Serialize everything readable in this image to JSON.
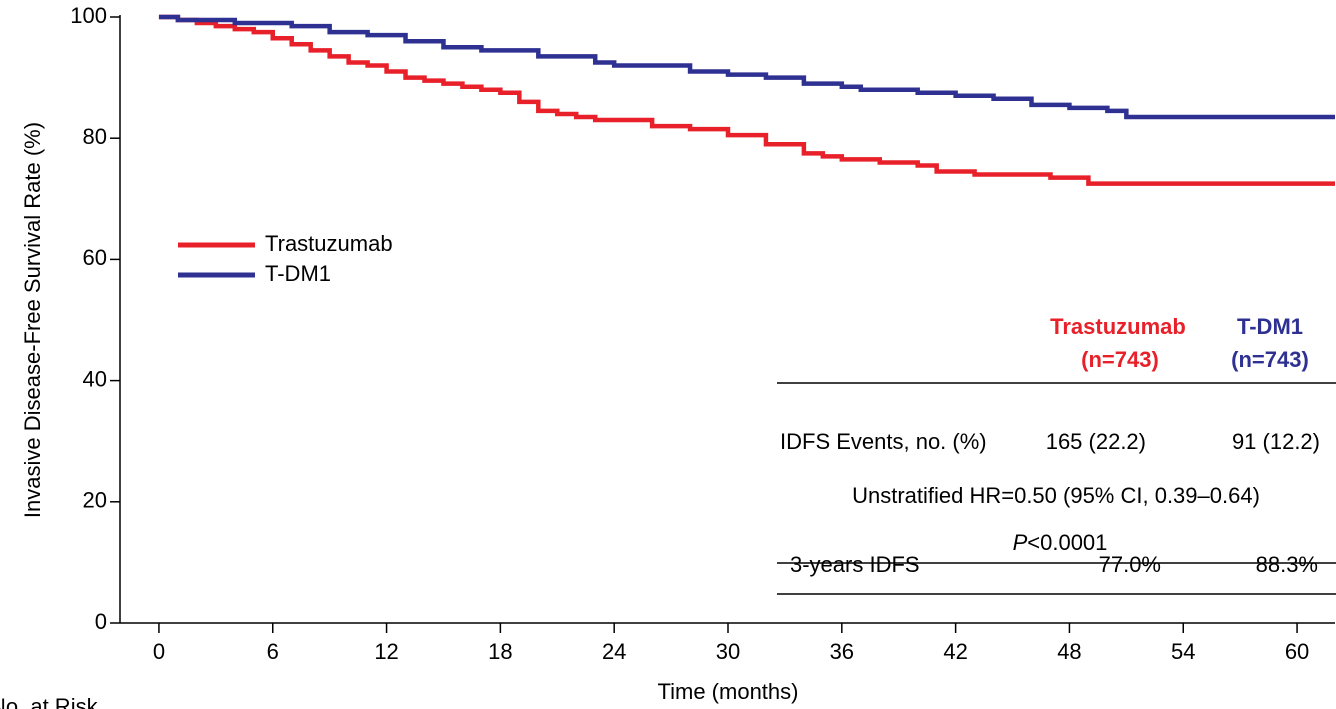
{
  "chart_data": {
    "type": "step",
    "ylabel": "Invasive Disease-Free Survival Rate (%)",
    "xlabel": "Time (months)",
    "footer": "No. at Risk",
    "xlim": [
      -2,
      62
    ],
    "xticks": [
      0,
      6,
      12,
      18,
      24,
      30,
      36,
      42,
      48,
      54,
      60
    ],
    "ylim": [
      0,
      100
    ],
    "yticks": [
      0,
      20,
      40,
      60,
      80,
      100
    ],
    "legend": "upper left",
    "series": [
      {
        "name": "Trastuzumab",
        "color": "#e8202a",
        "x": [
          0,
          1,
          2,
          3,
          4,
          5,
          6,
          7,
          8,
          9,
          10,
          11,
          12,
          13,
          14,
          15,
          16,
          17,
          18,
          19,
          20,
          21,
          22,
          23,
          26,
          28,
          30,
          32,
          34,
          35,
          36,
          38,
          40,
          41,
          43,
          47,
          49,
          62
        ],
        "values": [
          100,
          99.5,
          99,
          98.5,
          98,
          97.5,
          96.5,
          95.5,
          94.5,
          93.5,
          92.5,
          92,
          91,
          90,
          89.5,
          89,
          88.5,
          88,
          87.5,
          86,
          84.5,
          84,
          83.5,
          83,
          82,
          81.5,
          80.5,
          79,
          77.5,
          77,
          76.5,
          76,
          75.5,
          74.5,
          74,
          73.5,
          72.5,
          72.5
        ]
      },
      {
        "name": "T-DM1",
        "color": "#2e3192",
        "x": [
          0,
          1,
          4,
          7,
          9,
          11,
          13,
          15,
          17,
          20,
          23,
          24,
          28,
          30,
          32,
          34,
          36,
          37,
          40,
          42,
          44,
          46,
          48,
          50,
          51,
          62
        ],
        "values": [
          100,
          99.5,
          99,
          98.5,
          97.5,
          97,
          96,
          95,
          94.5,
          93.5,
          92.5,
          92,
          91,
          90.5,
          90,
          89,
          88.5,
          88,
          87.5,
          87,
          86.5,
          85.5,
          85,
          84.5,
          83.5,
          83.5
        ]
      }
    ],
    "table": {
      "header": [
        {
          "name": "Trastuzumab",
          "n": "(n=743)"
        },
        {
          "name": "T-DM1",
          "n": "(n=743)"
        }
      ],
      "events_label": "IDFS Events, no. (%)",
      "events": [
        "165 (22.2)",
        "91 (12.2)"
      ],
      "hr": "Unstratified HR=0.50 (95% CI, 0.39–0.64)",
      "p_label": "P",
      "p_value": "<0.0001",
      "idfs_label": "3-years IDFS",
      "idfs": [
        "77.0%",
        "88.3%"
      ]
    }
  }
}
